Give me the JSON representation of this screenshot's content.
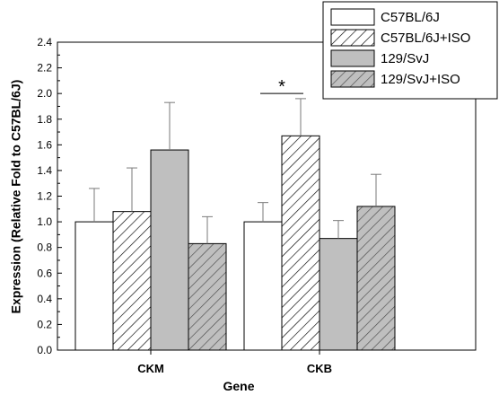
{
  "chart_data": {
    "type": "bar",
    "title": "",
    "xlabel": "Gene",
    "ylabel": "Expression (Relative Fold to C57BL/6J)",
    "categories": [
      "CKM",
      "CKB"
    ],
    "ylim": [
      0.0,
      2.4
    ],
    "yticks": [
      "0.0",
      "0.2",
      "0.4",
      "0.6",
      "0.8",
      "1.0",
      "1.2",
      "1.4",
      "1.6",
      "1.8",
      "2.0",
      "2.2",
      "2.4"
    ],
    "grid": false,
    "legend_position": "top-right",
    "series": [
      {
        "name": "C57BL/6J",
        "fill": "white",
        "pattern": false,
        "values": [
          1.0,
          1.0
        ],
        "errors": [
          0.26,
          0.15
        ]
      },
      {
        "name": "C57BL/6J+ISO",
        "fill": "white",
        "pattern": true,
        "values": [
          1.08,
          1.67
        ],
        "errors": [
          0.34,
          0.29
        ]
      },
      {
        "name": "129/SvJ",
        "fill": "#bfbfbf",
        "pattern": false,
        "values": [
          1.56,
          0.87
        ],
        "errors": [
          0.37,
          0.14
        ]
      },
      {
        "name": "129/SvJ+ISO",
        "fill": "#bfbfbf",
        "pattern": true,
        "values": [
          0.83,
          1.12
        ],
        "errors": [
          0.21,
          0.25
        ]
      }
    ],
    "annotations": [
      {
        "text": "*",
        "category": "CKB",
        "series_span": [
          "C57BL/6J",
          "C57BL/6J+ISO"
        ],
        "y": 2.0
      }
    ]
  }
}
